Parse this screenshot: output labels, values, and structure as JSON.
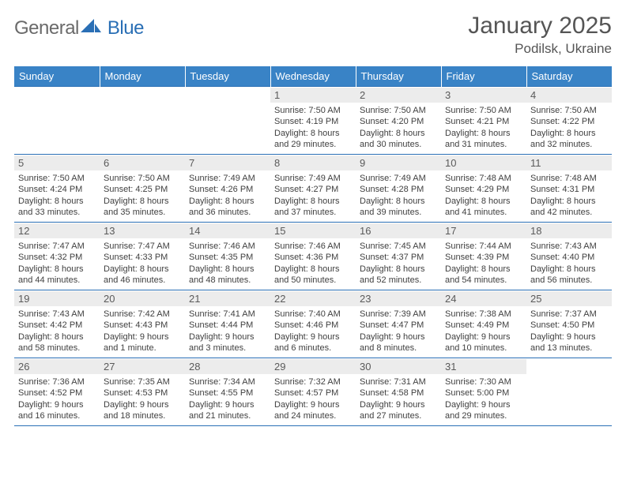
{
  "brand": {
    "name_a": "General",
    "name_b": "Blue"
  },
  "title": {
    "month": "January 2025",
    "location": "Podilsk, Ukraine"
  },
  "colors": {
    "accent": "#3983c6",
    "rule": "#2a6fb5",
    "zebra": "#ececec",
    "text": "#404040",
    "page_bg": "#ffffff"
  },
  "daynames": [
    "Sunday",
    "Monday",
    "Tuesday",
    "Wednesday",
    "Thursday",
    "Friday",
    "Saturday"
  ],
  "weeks": [
    [
      {
        "n": "",
        "l": []
      },
      {
        "n": "",
        "l": []
      },
      {
        "n": "",
        "l": []
      },
      {
        "n": "1",
        "l": [
          "Sunrise: 7:50 AM",
          "Sunset: 4:19 PM",
          "Daylight: 8 hours",
          "and 29 minutes."
        ]
      },
      {
        "n": "2",
        "l": [
          "Sunrise: 7:50 AM",
          "Sunset: 4:20 PM",
          "Daylight: 8 hours",
          "and 30 minutes."
        ]
      },
      {
        "n": "3",
        "l": [
          "Sunrise: 7:50 AM",
          "Sunset: 4:21 PM",
          "Daylight: 8 hours",
          "and 31 minutes."
        ]
      },
      {
        "n": "4",
        "l": [
          "Sunrise: 7:50 AM",
          "Sunset: 4:22 PM",
          "Daylight: 8 hours",
          "and 32 minutes."
        ]
      }
    ],
    [
      {
        "n": "5",
        "l": [
          "Sunrise: 7:50 AM",
          "Sunset: 4:24 PM",
          "Daylight: 8 hours",
          "and 33 minutes."
        ]
      },
      {
        "n": "6",
        "l": [
          "Sunrise: 7:50 AM",
          "Sunset: 4:25 PM",
          "Daylight: 8 hours",
          "and 35 minutes."
        ]
      },
      {
        "n": "7",
        "l": [
          "Sunrise: 7:49 AM",
          "Sunset: 4:26 PM",
          "Daylight: 8 hours",
          "and 36 minutes."
        ]
      },
      {
        "n": "8",
        "l": [
          "Sunrise: 7:49 AM",
          "Sunset: 4:27 PM",
          "Daylight: 8 hours",
          "and 37 minutes."
        ]
      },
      {
        "n": "9",
        "l": [
          "Sunrise: 7:49 AM",
          "Sunset: 4:28 PM",
          "Daylight: 8 hours",
          "and 39 minutes."
        ]
      },
      {
        "n": "10",
        "l": [
          "Sunrise: 7:48 AM",
          "Sunset: 4:29 PM",
          "Daylight: 8 hours",
          "and 41 minutes."
        ]
      },
      {
        "n": "11",
        "l": [
          "Sunrise: 7:48 AM",
          "Sunset: 4:31 PM",
          "Daylight: 8 hours",
          "and 42 minutes."
        ]
      }
    ],
    [
      {
        "n": "12",
        "l": [
          "Sunrise: 7:47 AM",
          "Sunset: 4:32 PM",
          "Daylight: 8 hours",
          "and 44 minutes."
        ]
      },
      {
        "n": "13",
        "l": [
          "Sunrise: 7:47 AM",
          "Sunset: 4:33 PM",
          "Daylight: 8 hours",
          "and 46 minutes."
        ]
      },
      {
        "n": "14",
        "l": [
          "Sunrise: 7:46 AM",
          "Sunset: 4:35 PM",
          "Daylight: 8 hours",
          "and 48 minutes."
        ]
      },
      {
        "n": "15",
        "l": [
          "Sunrise: 7:46 AM",
          "Sunset: 4:36 PM",
          "Daylight: 8 hours",
          "and 50 minutes."
        ]
      },
      {
        "n": "16",
        "l": [
          "Sunrise: 7:45 AM",
          "Sunset: 4:37 PM",
          "Daylight: 8 hours",
          "and 52 minutes."
        ]
      },
      {
        "n": "17",
        "l": [
          "Sunrise: 7:44 AM",
          "Sunset: 4:39 PM",
          "Daylight: 8 hours",
          "and 54 minutes."
        ]
      },
      {
        "n": "18",
        "l": [
          "Sunrise: 7:43 AM",
          "Sunset: 4:40 PM",
          "Daylight: 8 hours",
          "and 56 minutes."
        ]
      }
    ],
    [
      {
        "n": "19",
        "l": [
          "Sunrise: 7:43 AM",
          "Sunset: 4:42 PM",
          "Daylight: 8 hours",
          "and 58 minutes."
        ]
      },
      {
        "n": "20",
        "l": [
          "Sunrise: 7:42 AM",
          "Sunset: 4:43 PM",
          "Daylight: 9 hours",
          "and 1 minute."
        ]
      },
      {
        "n": "21",
        "l": [
          "Sunrise: 7:41 AM",
          "Sunset: 4:44 PM",
          "Daylight: 9 hours",
          "and 3 minutes."
        ]
      },
      {
        "n": "22",
        "l": [
          "Sunrise: 7:40 AM",
          "Sunset: 4:46 PM",
          "Daylight: 9 hours",
          "and 6 minutes."
        ]
      },
      {
        "n": "23",
        "l": [
          "Sunrise: 7:39 AM",
          "Sunset: 4:47 PM",
          "Daylight: 9 hours",
          "and 8 minutes."
        ]
      },
      {
        "n": "24",
        "l": [
          "Sunrise: 7:38 AM",
          "Sunset: 4:49 PM",
          "Daylight: 9 hours",
          "and 10 minutes."
        ]
      },
      {
        "n": "25",
        "l": [
          "Sunrise: 7:37 AM",
          "Sunset: 4:50 PM",
          "Daylight: 9 hours",
          "and 13 minutes."
        ]
      }
    ],
    [
      {
        "n": "26",
        "l": [
          "Sunrise: 7:36 AM",
          "Sunset: 4:52 PM",
          "Daylight: 9 hours",
          "and 16 minutes."
        ]
      },
      {
        "n": "27",
        "l": [
          "Sunrise: 7:35 AM",
          "Sunset: 4:53 PM",
          "Daylight: 9 hours",
          "and 18 minutes."
        ]
      },
      {
        "n": "28",
        "l": [
          "Sunrise: 7:34 AM",
          "Sunset: 4:55 PM",
          "Daylight: 9 hours",
          "and 21 minutes."
        ]
      },
      {
        "n": "29",
        "l": [
          "Sunrise: 7:32 AM",
          "Sunset: 4:57 PM",
          "Daylight: 9 hours",
          "and 24 minutes."
        ]
      },
      {
        "n": "30",
        "l": [
          "Sunrise: 7:31 AM",
          "Sunset: 4:58 PM",
          "Daylight: 9 hours",
          "and 27 minutes."
        ]
      },
      {
        "n": "31",
        "l": [
          "Sunrise: 7:30 AM",
          "Sunset: 5:00 PM",
          "Daylight: 9 hours",
          "and 29 minutes."
        ]
      },
      {
        "n": "",
        "l": []
      }
    ]
  ]
}
